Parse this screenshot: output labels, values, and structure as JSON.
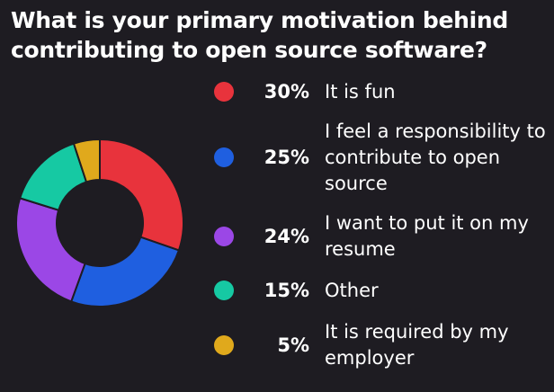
{
  "title": "What is your primary motivation behind contributing to open source software?",
  "chart_data": {
    "type": "pie",
    "variant": "donut",
    "title": "What is your primary motivation behind contributing to open source software?",
    "legend_position": "right",
    "slices": [
      {
        "label": "It is fun",
        "value": 30,
        "display": "30%",
        "color": "#e8333c"
      },
      {
        "label": "I feel a responsibility to contribute to open source",
        "value": 25,
        "display": "25%",
        "color": "#1f5fe0"
      },
      {
        "label": "I want to put it on my resume",
        "value": 24,
        "display": "24%",
        "color": "#9b47e6"
      },
      {
        "label": "Other",
        "value": 15,
        "display": "15%",
        "color": "#16c9a3"
      },
      {
        "label": "It is required by my employer",
        "value": 5,
        "display": "5%",
        "color": "#e0a91c"
      }
    ]
  }
}
